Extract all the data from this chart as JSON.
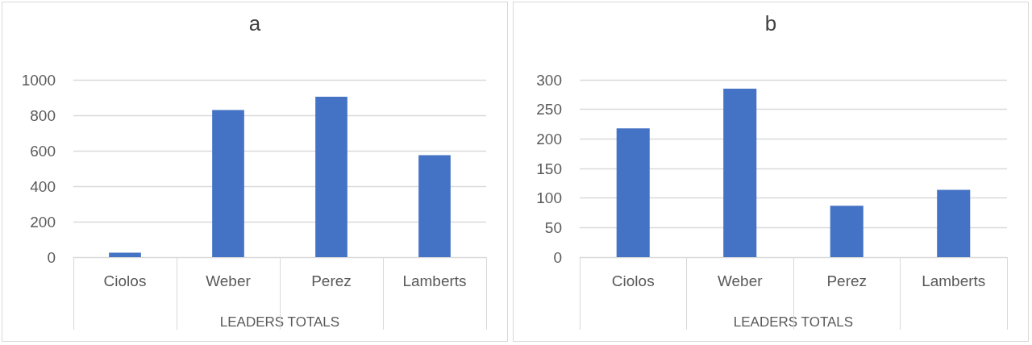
{
  "chart_data": [
    {
      "type": "bar",
      "title": "a",
      "xlabel": "LEADERS TOTALS",
      "categories": [
        "Ciolos",
        "Weber",
        "Perez",
        "Lamberts"
      ],
      "values": [
        25,
        830,
        905,
        575
      ],
      "color": "#4472c4",
      "ylim": [
        0,
        1000
      ],
      "yticks": [
        0,
        200,
        400,
        600,
        800,
        1000
      ],
      "grid": "y"
    },
    {
      "type": "bar",
      "title": "b",
      "xlabel": "LEADERS TOTALS",
      "categories": [
        "Ciolos",
        "Weber",
        "Perez",
        "Lamberts"
      ],
      "values": [
        218,
        285,
        87,
        114
      ],
      "color": "#4472c4",
      "ylim": [
        0,
        300
      ],
      "yticks": [
        0,
        50,
        100,
        150,
        200,
        250,
        300
      ],
      "grid": "y"
    }
  ]
}
